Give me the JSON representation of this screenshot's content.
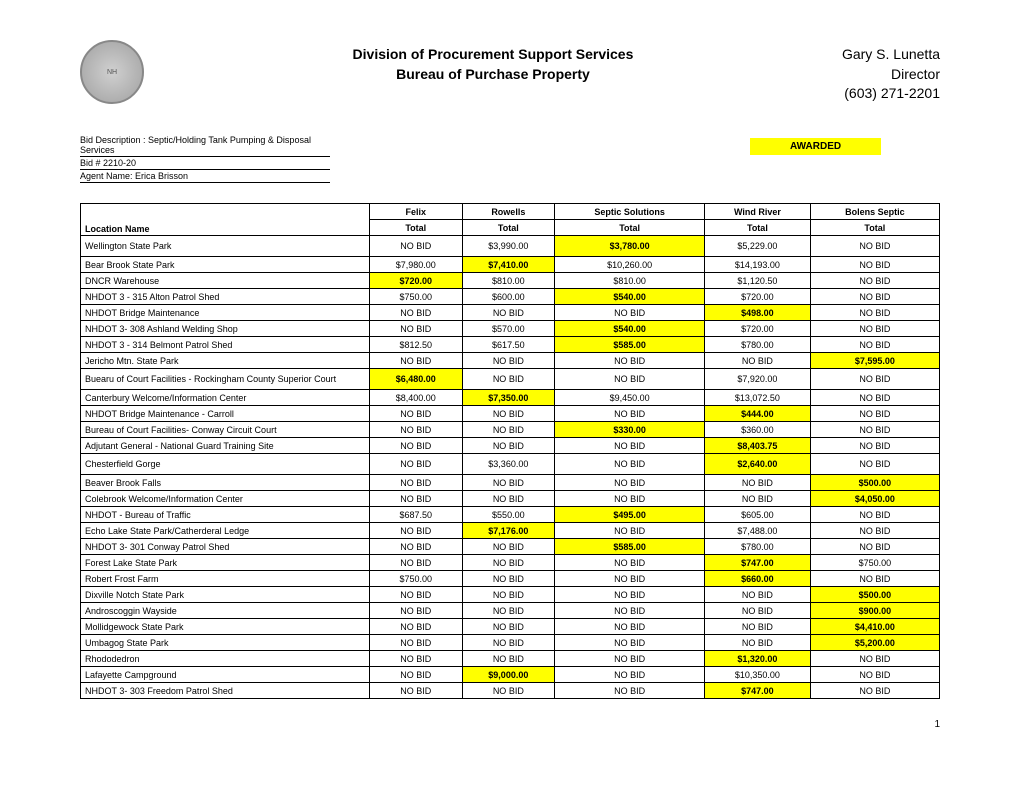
{
  "header": {
    "center_line1": "Division of Procurement Support Services",
    "center_line2": "Bureau of Purchase Property",
    "right_name": "Gary S. Lunetta",
    "right_title": "Director",
    "right_phone": "(603) 271-2201"
  },
  "bid": {
    "desc": "Bid Description : Septic/Holding Tank Pumping & Disposal Services",
    "num": "Bid #  2210-20",
    "agent": "Agent Name: Erica Brisson"
  },
  "awarded_label": "AWARDED",
  "columns": [
    "Location Name",
    "Felix",
    "Rowells",
    "Septic Solutions",
    "Wind River",
    "Bolens Septic"
  ],
  "subhead": "Total",
  "rows": [
    {
      "loc": "Wellington State Park",
      "cells": [
        {
          "t": "NO BID"
        },
        {
          "t": "$3,990.00"
        },
        {
          "t": "$3,780.00",
          "hl": true
        },
        {
          "t": "$5,229.00"
        },
        {
          "t": "NO BID"
        }
      ],
      "tall": true
    },
    {
      "loc": "Bear Brook State Park",
      "cells": [
        {
          "t": "$7,980.00"
        },
        {
          "t": "$7,410.00",
          "hl": true
        },
        {
          "t": "$10,260.00"
        },
        {
          "t": "$14,193.00"
        },
        {
          "t": "NO BID"
        }
      ]
    },
    {
      "loc": "DNCR Warehouse",
      "cells": [
        {
          "t": "$720.00",
          "hl": true
        },
        {
          "t": "$810.00"
        },
        {
          "t": "$810.00"
        },
        {
          "t": "$1,120.50"
        },
        {
          "t": "NO BID"
        }
      ]
    },
    {
      "loc": "NHDOT 3 - 315 Alton Patrol Shed",
      "cells": [
        {
          "t": "$750.00"
        },
        {
          "t": "$600.00"
        },
        {
          "t": "$540.00",
          "hl": true
        },
        {
          "t": "$720.00"
        },
        {
          "t": "NO BID"
        }
      ]
    },
    {
      "loc": "NHDOT Bridge Maintenance",
      "cells": [
        {
          "t": "NO BID"
        },
        {
          "t": "NO BID"
        },
        {
          "t": "NO BID"
        },
        {
          "t": "$498.00",
          "hl": true
        },
        {
          "t": "NO BID"
        }
      ]
    },
    {
      "loc": "NHDOT 3- 308 Ashland Welding Shop",
      "cells": [
        {
          "t": "NO BID"
        },
        {
          "t": "$570.00"
        },
        {
          "t": "$540.00",
          "hl": true
        },
        {
          "t": "$720.00"
        },
        {
          "t": "NO BID"
        }
      ]
    },
    {
      "loc": "NHDOT 3 - 314 Belmont Patrol Shed",
      "cells": [
        {
          "t": "$812.50"
        },
        {
          "t": "$617.50"
        },
        {
          "t": "$585.00",
          "hl": true
        },
        {
          "t": "$780.00"
        },
        {
          "t": "NO BID"
        }
      ]
    },
    {
      "loc": "Jericho Mtn. State Park",
      "cells": [
        {
          "t": "NO BID"
        },
        {
          "t": "NO BID"
        },
        {
          "t": "NO BID"
        },
        {
          "t": "NO BID"
        },
        {
          "t": "$7,595.00",
          "hl": true
        }
      ]
    },
    {
      "loc": "Buearu of Court Facilities - Rockingham County Superior Court",
      "cells": [
        {
          "t": "$6,480.00",
          "hl": true
        },
        {
          "t": "NO BID"
        },
        {
          "t": "NO BID"
        },
        {
          "t": "$7,920.00"
        },
        {
          "t": "NO BID"
        }
      ],
      "tall": true
    },
    {
      "loc": "Canterbury Welcome/Information Center",
      "cells": [
        {
          "t": "$8,400.00"
        },
        {
          "t": "$7,350.00",
          "hl": true
        },
        {
          "t": "$9,450.00"
        },
        {
          "t": "$13,072.50"
        },
        {
          "t": "NO BID"
        }
      ]
    },
    {
      "loc": "NHDOT Bridge Maintenance - Carroll",
      "cells": [
        {
          "t": "NO BID"
        },
        {
          "t": "NO BID"
        },
        {
          "t": "NO BID"
        },
        {
          "t": "$444.00",
          "hl": true
        },
        {
          "t": "NO BID"
        }
      ]
    },
    {
      "loc": "Bureau of Court Facilities- Conway Circuit Court",
      "cells": [
        {
          "t": "NO BID"
        },
        {
          "t": "NO BID"
        },
        {
          "t": "$330.00",
          "hl": true
        },
        {
          "t": "$360.00"
        },
        {
          "t": "NO BID"
        }
      ]
    },
    {
      "loc": "Adjutant General - National Guard Training Site",
      "cells": [
        {
          "t": "NO BID"
        },
        {
          "t": "NO BID"
        },
        {
          "t": "NO BID"
        },
        {
          "t": "$8,403.75",
          "hl": true
        },
        {
          "t": "NO BID"
        }
      ]
    },
    {
      "loc": "Chesterfield Gorge",
      "cells": [
        {
          "t": "NO BID"
        },
        {
          "t": "$3,360.00"
        },
        {
          "t": "NO BID"
        },
        {
          "t": "$2,640.00",
          "hl": true
        },
        {
          "t": "NO BID"
        }
      ],
      "tall": true
    },
    {
      "loc": "Beaver Brook Falls",
      "cells": [
        {
          "t": "NO BID"
        },
        {
          "t": "NO BID"
        },
        {
          "t": "NO BID"
        },
        {
          "t": "NO BID"
        },
        {
          "t": "$500.00",
          "hl": true
        }
      ]
    },
    {
      "loc": "Colebrook Welcome/Information Center",
      "cells": [
        {
          "t": "NO BID"
        },
        {
          "t": "NO BID"
        },
        {
          "t": "NO BID"
        },
        {
          "t": "NO BID"
        },
        {
          "t": "$4,050.00",
          "hl": true
        }
      ]
    },
    {
      "loc": "NHDOT - Bureau of Traffic",
      "cells": [
        {
          "t": "$687.50"
        },
        {
          "t": "$550.00"
        },
        {
          "t": "$495.00",
          "hl": true
        },
        {
          "t": "$605.00"
        },
        {
          "t": "NO BID"
        }
      ]
    },
    {
      "loc": "Echo Lake State Park/Catherderal Ledge",
      "cells": [
        {
          "t": "NO BID"
        },
        {
          "t": "$7,176.00",
          "hl": true
        },
        {
          "t": "NO BID"
        },
        {
          "t": "$7,488.00"
        },
        {
          "t": "NO BID"
        }
      ]
    },
    {
      "loc": "NHDOT 3- 301 Conway Patrol Shed",
      "cells": [
        {
          "t": "NO BID"
        },
        {
          "t": "NO BID"
        },
        {
          "t": "$585.00",
          "hl": true
        },
        {
          "t": "$780.00"
        },
        {
          "t": "NO BID"
        }
      ]
    },
    {
      "loc": "Forest Lake State Park",
      "cells": [
        {
          "t": "NO BID"
        },
        {
          "t": "NO BID"
        },
        {
          "t": "NO BID"
        },
        {
          "t": "$747.00",
          "hl": true
        },
        {
          "t": "$750.00"
        }
      ]
    },
    {
      "loc": "Robert Frost Farm",
      "cells": [
        {
          "t": "$750.00"
        },
        {
          "t": "NO BID"
        },
        {
          "t": "NO BID"
        },
        {
          "t": "$660.00",
          "hl": true
        },
        {
          "t": "NO BID"
        }
      ]
    },
    {
      "loc": "Dixville Notch State Park",
      "cells": [
        {
          "t": "NO BID"
        },
        {
          "t": "NO BID"
        },
        {
          "t": "NO BID"
        },
        {
          "t": "NO BID"
        },
        {
          "t": "$500.00",
          "hl": true
        }
      ]
    },
    {
      "loc": "Androscoggin Wayside",
      "cells": [
        {
          "t": "NO BID"
        },
        {
          "t": "NO BID"
        },
        {
          "t": "NO BID"
        },
        {
          "t": "NO BID"
        },
        {
          "t": "$900.00",
          "hl": true
        }
      ]
    },
    {
      "loc": "Mollidgewock State Park",
      "cells": [
        {
          "t": "NO BID"
        },
        {
          "t": "NO BID"
        },
        {
          "t": "NO BID"
        },
        {
          "t": "NO BID"
        },
        {
          "t": "$4,410.00",
          "hl": true
        }
      ]
    },
    {
      "loc": "Umbagog State Park",
      "cells": [
        {
          "t": "NO BID"
        },
        {
          "t": "NO BID"
        },
        {
          "t": "NO BID"
        },
        {
          "t": "NO BID"
        },
        {
          "t": "$5,200.00",
          "hl": true
        }
      ]
    },
    {
      "loc": "Rhododedron",
      "cells": [
        {
          "t": "NO BID"
        },
        {
          "t": "NO BID"
        },
        {
          "t": "NO BID"
        },
        {
          "t": "$1,320.00",
          "hl": true
        },
        {
          "t": "NO BID"
        }
      ]
    },
    {
      "loc": "Lafayette Campground",
      "cells": [
        {
          "t": "NO BID"
        },
        {
          "t": "$9,000.00",
          "hl": true
        },
        {
          "t": "NO BID"
        },
        {
          "t": "$10,350.00"
        },
        {
          "t": "NO BID"
        }
      ]
    },
    {
      "loc": "NHDOT 3- 303 Freedom Patrol Shed",
      "cells": [
        {
          "t": "NO BID"
        },
        {
          "t": "NO BID"
        },
        {
          "t": "NO BID"
        },
        {
          "t": "$747.00",
          "hl": true
        },
        {
          "t": "NO BID"
        }
      ]
    }
  ],
  "page_num": "1"
}
